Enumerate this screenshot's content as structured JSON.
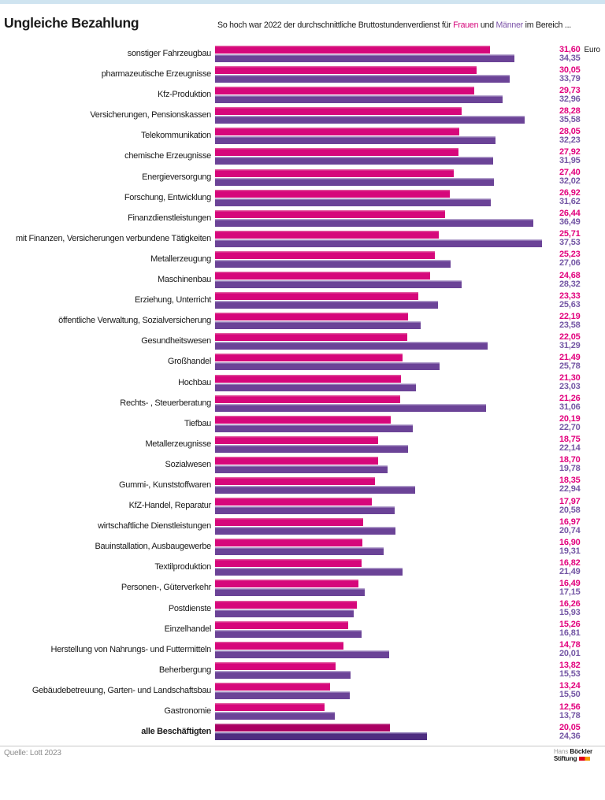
{
  "header": {
    "title": "Ungleiche Bezahlung"
  },
  "colors": {
    "frauen_bar": "#d6077b",
    "maenner_bar": "#6b4397",
    "frauen_bar_emphasis": "#aa0063",
    "maenner_bar_emphasis": "#4e2d80",
    "frauen_value_text": "#e2007d",
    "maenner_value_text": "#7456a4",
    "topbar": "#cfe4f0",
    "logo_mark_red": "#e2001a",
    "logo_mark_orange": "#f39b00"
  },
  "chart_data": {
    "type": "bar",
    "orientation": "horizontal",
    "title": "Ungleiche Bezahlung",
    "subtitle": {
      "prefix": "So hoch war 2022 der durchschnittliche Bruttostundenverdienst für ",
      "frauen": "Frauen",
      "und": " und ",
      "maenner": "Männer",
      "suffix": " im Bereich ..."
    },
    "unit": "Euro",
    "xlim": [
      0,
      37.53
    ],
    "grid": false,
    "legend": "inline-in-subtitle",
    "series_names": [
      "Frauen",
      "Männer"
    ],
    "rows": [
      {
        "label": "sonstiger Fahrzeugbau",
        "frauen": 31.6,
        "maenner": 34.35
      },
      {
        "label": "pharmazeutische Erzeugnisse",
        "frauen": 30.05,
        "maenner": 33.79
      },
      {
        "label": "Kfz-Produktion",
        "frauen": 29.73,
        "maenner": 32.96
      },
      {
        "label": "Versicherungen, Pensionskassen",
        "frauen": 28.28,
        "maenner": 35.58
      },
      {
        "label": "Telekommunikation",
        "frauen": 28.05,
        "maenner": 32.23
      },
      {
        "label": "chemische Erzeugnisse",
        "frauen": 27.92,
        "maenner": 31.95
      },
      {
        "label": "Energieversorgung",
        "frauen": 27.4,
        "maenner": 32.02
      },
      {
        "label": "Forschung, Entwicklung",
        "frauen": 26.92,
        "maenner": 31.62
      },
      {
        "label": "Finanzdienstleistungen",
        "frauen": 26.44,
        "maenner": 36.49
      },
      {
        "label": "mit Finanzen, Versicherungen verbundene Tätigkeiten",
        "frauen": 25.71,
        "maenner": 37.53
      },
      {
        "label": "Metallerzeugung",
        "frauen": 25.23,
        "maenner": 27.06
      },
      {
        "label": "Maschinenbau",
        "frauen": 24.68,
        "maenner": 28.32
      },
      {
        "label": "Erziehung, Unterricht",
        "frauen": 23.33,
        "maenner": 25.63
      },
      {
        "label": "öffentliche Verwaltung, Sozialversicherung",
        "frauen": 22.19,
        "maenner": 23.58
      },
      {
        "label": "Gesundheitswesen",
        "frauen": 22.05,
        "maenner": 31.29
      },
      {
        "label": "Großhandel",
        "frauen": 21.49,
        "maenner": 25.78
      },
      {
        "label": "Hochbau",
        "frauen": 21.3,
        "maenner": 23.03
      },
      {
        "label": "Rechts- , Steuerberatung",
        "frauen": 21.26,
        "maenner": 31.06
      },
      {
        "label": "Tiefbau",
        "frauen": 20.19,
        "maenner": 22.7
      },
      {
        "label": "Metallerzeugnisse",
        "frauen": 18.75,
        "maenner": 22.14
      },
      {
        "label": "Sozialwesen",
        "frauen": 18.7,
        "maenner": 19.78
      },
      {
        "label": "Gummi-, Kunststoffwaren",
        "frauen": 18.35,
        "maenner": 22.94
      },
      {
        "label": "KfZ-Handel, Reparatur",
        "frauen": 17.97,
        "maenner": 20.58
      },
      {
        "label": "wirtschaftliche Dienstleistungen",
        "frauen": 16.97,
        "maenner": 20.74
      },
      {
        "label": "Bauinstallation, Ausbaugewerbe",
        "frauen": 16.9,
        "maenner": 19.31
      },
      {
        "label": "Textilproduktion",
        "frauen": 16.82,
        "maenner": 21.49
      },
      {
        "label": "Personen-, Güterverkehr",
        "frauen": 16.49,
        "maenner": 17.15
      },
      {
        "label": "Postdienste",
        "frauen": 16.26,
        "maenner": 15.93
      },
      {
        "label": "Einzelhandel",
        "frauen": 15.26,
        "maenner": 16.81
      },
      {
        "label": "Herstellung von Nahrungs- und Futtermitteln",
        "frauen": 14.78,
        "maenner": 20.01
      },
      {
        "label": "Beherbergung",
        "frauen": 13.82,
        "maenner": 15.53
      },
      {
        "label": "Gebäudebetreuung, Garten- und Landschaftsbau",
        "frauen": 13.24,
        "maenner": 15.5
      },
      {
        "label": "Gastronomie",
        "frauen": 12.56,
        "maenner": 13.78
      },
      {
        "label": "alle Beschäftigten",
        "frauen": 20.05,
        "maenner": 24.36,
        "emphasis": true
      }
    ]
  },
  "footer": {
    "source": "Quelle: Lott 2023",
    "logo": {
      "light": "Hans",
      "bold1": "Böckler",
      "bold2": "Stiftung"
    }
  }
}
